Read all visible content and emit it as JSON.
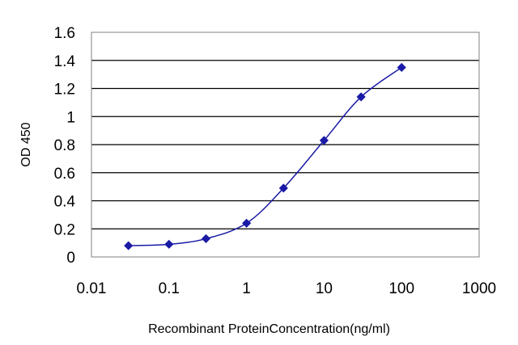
{
  "chart_data": {
    "type": "line",
    "title": "",
    "xlabel": "Recombinant ProteinConcentration(ng/ml)",
    "ylabel": "OD 450",
    "xscale": "log",
    "xlim": [
      0.01,
      1000
    ],
    "ylim": [
      0,
      1.6
    ],
    "grid": "horizontal",
    "legend": "none",
    "x_ticks": [
      "0.01",
      "0.1",
      "1",
      "10",
      "100",
      "1000"
    ],
    "y_ticks": [
      "0",
      "0.2",
      "0.4",
      "0.6",
      "0.8",
      "1",
      "1.2",
      "1.4",
      "1.6"
    ],
    "series": [
      {
        "x": [
          0.03,
          0.1,
          0.3,
          1,
          3,
          10,
          30,
          100
        ],
        "y": [
          0.08,
          0.09,
          0.13,
          0.24,
          0.49,
          0.83,
          1.14,
          1.35
        ],
        "color": "#1a1aa6"
      }
    ]
  }
}
